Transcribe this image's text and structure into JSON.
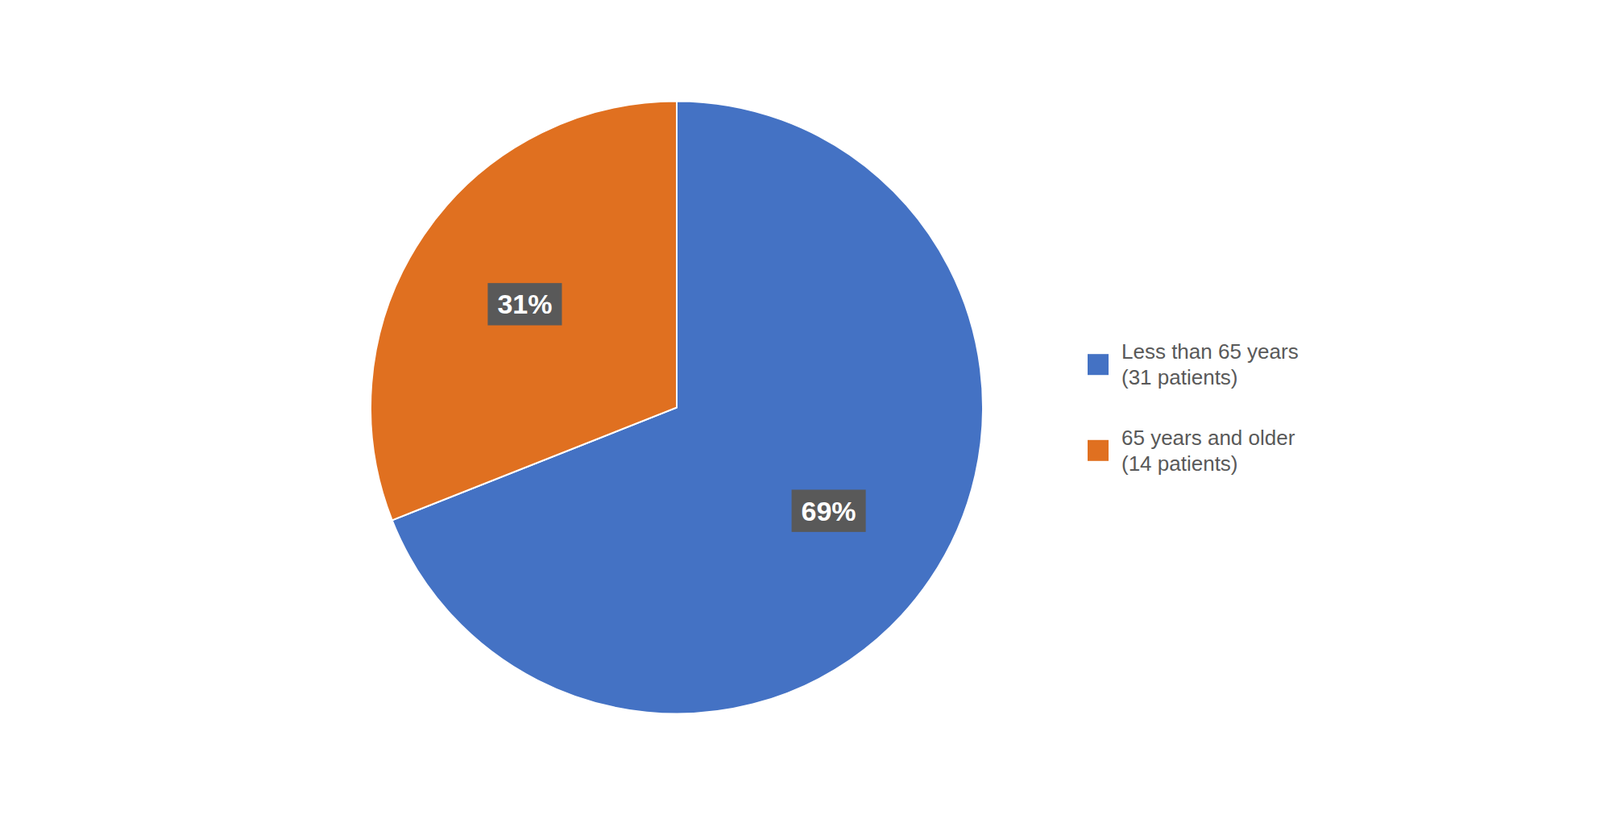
{
  "chart_data": {
    "type": "pie",
    "categories": [
      "Less than 65 years\n(31 patients)",
      "65 years and older\n(14 patients)"
    ],
    "values": [
      69,
      31
    ],
    "value_labels": [
      "69%",
      "31%"
    ],
    "colors": [
      "#4472C4",
      "#E07020"
    ],
    "data_labels": true,
    "legend": "right"
  }
}
